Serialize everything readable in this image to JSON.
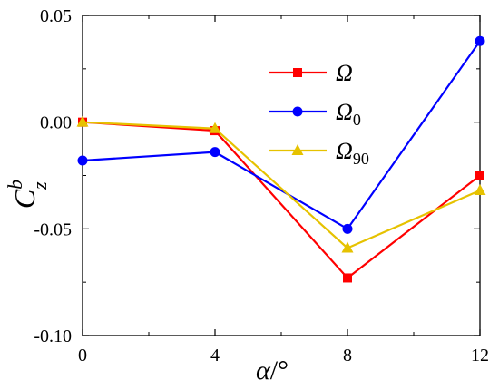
{
  "chart_data": {
    "type": "line",
    "xlabel": {
      "symbol": "α",
      "unit": "/°"
    },
    "ylabel": {
      "symbol": "C",
      "subscript": "z",
      "superscript": "b"
    },
    "x": [
      0,
      4,
      8,
      12
    ],
    "xlim": [
      0,
      12
    ],
    "ylim": [
      -0.1,
      0.05
    ],
    "x_ticks": [
      {
        "value": 0,
        "label": "0"
      },
      {
        "value": 4,
        "label": "4"
      },
      {
        "value": 8,
        "label": "8"
      },
      {
        "value": 12,
        "label": "12"
      }
    ],
    "y_ticks": [
      {
        "value": 0.05,
        "label": "0.05"
      },
      {
        "value": 0.0,
        "label": "0.00"
      },
      {
        "value": -0.05,
        "label": "-0.05"
      },
      {
        "value": -0.1,
        "label": "-0.10"
      }
    ],
    "grid": false,
    "legend_position": "top-right",
    "series": [
      {
        "name": "Ω",
        "name_sub": "",
        "color": "#ff0000",
        "marker": "square",
        "values": [
          0.0,
          -0.004,
          -0.073,
          -0.025
        ]
      },
      {
        "name": "Ω",
        "name_sub": "0",
        "color": "#0000ff",
        "marker": "circle",
        "values": [
          -0.018,
          -0.014,
          -0.05,
          0.038
        ]
      },
      {
        "name": "Ω",
        "name_sub": "90",
        "color": "#e6c200",
        "marker": "triangle",
        "values": [
          0.0,
          -0.003,
          -0.059,
          -0.032
        ]
      }
    ]
  }
}
